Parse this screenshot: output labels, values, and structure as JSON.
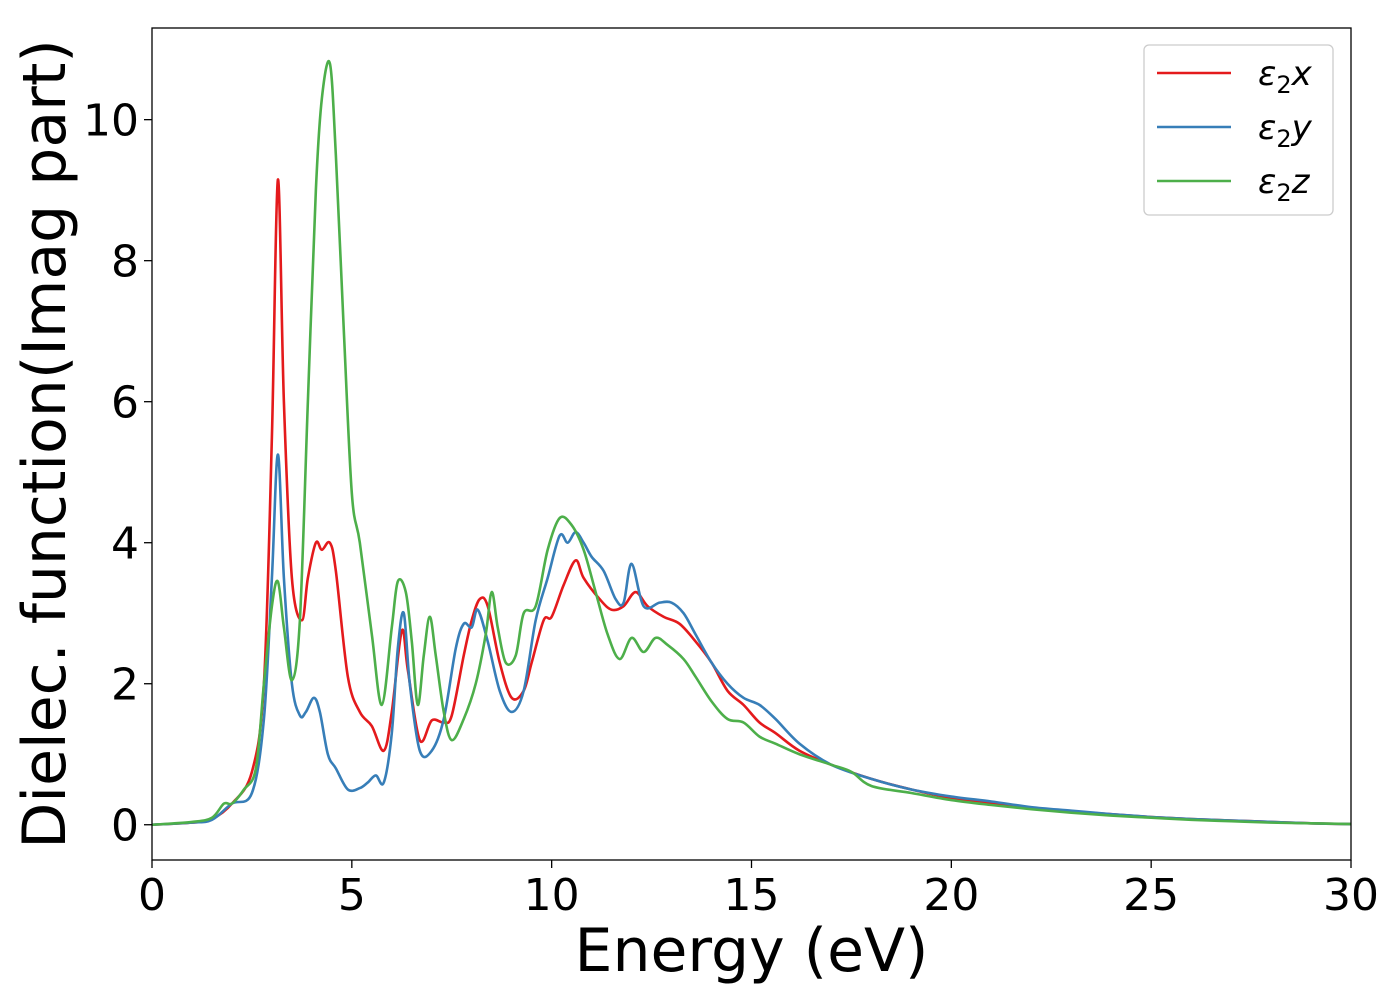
{
  "chart_data": {
    "type": "line",
    "title": "",
    "xlabel": "Energy (eV)",
    "ylabel": "Dielec. function(Imag part)",
    "xlim": [
      0,
      30
    ],
    "ylim": [
      -0.5,
      11.3
    ],
    "xticks": [
      0,
      5,
      10,
      15,
      20,
      25,
      30
    ],
    "yticks": [
      0,
      2,
      4,
      6,
      8,
      10
    ],
    "grid": false,
    "legend_position": "top-right",
    "series": [
      {
        "name": "ε2x",
        "label_base": "ε",
        "label_sub": "2",
        "label_suffix": "x",
        "color": "#e41a1c",
        "points": [
          [
            0,
            0
          ],
          [
            1,
            0.03
          ],
          [
            1.5,
            0.08
          ],
          [
            2,
            0.3
          ],
          [
            2.5,
            0.75
          ],
          [
            2.8,
            2.0
          ],
          [
            3.0,
            5.5
          ],
          [
            3.15,
            9.15
          ],
          [
            3.3,
            6.0
          ],
          [
            3.5,
            3.5
          ],
          [
            3.75,
            2.9
          ],
          [
            3.9,
            3.5
          ],
          [
            4.1,
            4.0
          ],
          [
            4.25,
            3.9
          ],
          [
            4.45,
            4.0
          ],
          [
            4.6,
            3.6
          ],
          [
            4.9,
            2.1
          ],
          [
            5.2,
            1.6
          ],
          [
            5.5,
            1.4
          ],
          [
            5.8,
            1.05
          ],
          [
            6.0,
            1.6
          ],
          [
            6.25,
            2.75
          ],
          [
            6.4,
            2.2
          ],
          [
            6.7,
            1.2
          ],
          [
            7.0,
            1.48
          ],
          [
            7.3,
            1.45
          ],
          [
            7.5,
            1.55
          ],
          [
            7.8,
            2.4
          ],
          [
            8.0,
            2.9
          ],
          [
            8.2,
            3.2
          ],
          [
            8.4,
            3.1
          ],
          [
            8.7,
            2.3
          ],
          [
            9.0,
            1.8
          ],
          [
            9.3,
            1.9
          ],
          [
            9.5,
            2.3
          ],
          [
            9.8,
            2.9
          ],
          [
            10.0,
            2.95
          ],
          [
            10.3,
            3.4
          ],
          [
            10.6,
            3.75
          ],
          [
            10.8,
            3.5
          ],
          [
            11.2,
            3.2
          ],
          [
            11.5,
            3.05
          ],
          [
            11.8,
            3.1
          ],
          [
            12.1,
            3.3
          ],
          [
            12.4,
            3.1
          ],
          [
            12.8,
            2.95
          ],
          [
            13.2,
            2.85
          ],
          [
            13.6,
            2.6
          ],
          [
            14.0,
            2.3
          ],
          [
            14.4,
            1.9
          ],
          [
            14.8,
            1.7
          ],
          [
            15.2,
            1.45
          ],
          [
            15.6,
            1.3
          ],
          [
            16.2,
            1.05
          ],
          [
            17.0,
            0.85
          ],
          [
            18.0,
            0.65
          ],
          [
            19.0,
            0.5
          ],
          [
            20.0,
            0.38
          ],
          [
            21.0,
            0.3
          ],
          [
            22.0,
            0.24
          ],
          [
            23.0,
            0.19
          ],
          [
            24.0,
            0.15
          ],
          [
            25.0,
            0.11
          ],
          [
            26.0,
            0.08
          ],
          [
            27.0,
            0.06
          ],
          [
            28.0,
            0.04
          ],
          [
            29.0,
            0.02
          ],
          [
            30.0,
            0.01
          ]
        ]
      },
      {
        "name": "ε2y",
        "label_base": "ε",
        "label_sub": "2",
        "label_suffix": "y",
        "color": "#377eb8",
        "points": [
          [
            0,
            0
          ],
          [
            1,
            0.03
          ],
          [
            1.5,
            0.07
          ],
          [
            2,
            0.3
          ],
          [
            2.5,
            0.45
          ],
          [
            2.8,
            1.5
          ],
          [
            3.0,
            3.5
          ],
          [
            3.15,
            5.25
          ],
          [
            3.3,
            3.5
          ],
          [
            3.5,
            2.0
          ],
          [
            3.7,
            1.55
          ],
          [
            3.85,
            1.6
          ],
          [
            4.05,
            1.8
          ],
          [
            4.2,
            1.6
          ],
          [
            4.4,
            1.0
          ],
          [
            4.6,
            0.8
          ],
          [
            4.9,
            0.5
          ],
          [
            5.2,
            0.52
          ],
          [
            5.4,
            0.6
          ],
          [
            5.6,
            0.7
          ],
          [
            5.8,
            0.6
          ],
          [
            6.0,
            1.3
          ],
          [
            6.15,
            2.5
          ],
          [
            6.3,
            3.0
          ],
          [
            6.45,
            2.0
          ],
          [
            6.7,
            1.05
          ],
          [
            7.0,
            1.05
          ],
          [
            7.3,
            1.5
          ],
          [
            7.6,
            2.5
          ],
          [
            7.8,
            2.85
          ],
          [
            8.0,
            2.8
          ],
          [
            8.15,
            3.05
          ],
          [
            8.4,
            2.6
          ],
          [
            8.7,
            1.9
          ],
          [
            9.0,
            1.6
          ],
          [
            9.3,
            1.9
          ],
          [
            9.6,
            2.9
          ],
          [
            9.9,
            3.5
          ],
          [
            10.2,
            4.1
          ],
          [
            10.4,
            4.0
          ],
          [
            10.6,
            4.15
          ],
          [
            10.8,
            4.0
          ],
          [
            11.0,
            3.8
          ],
          [
            11.3,
            3.6
          ],
          [
            11.6,
            3.2
          ],
          [
            11.8,
            3.15
          ],
          [
            12.0,
            3.7
          ],
          [
            12.3,
            3.1
          ],
          [
            12.7,
            3.15
          ],
          [
            13.0,
            3.15
          ],
          [
            13.3,
            3.0
          ],
          [
            13.6,
            2.7
          ],
          [
            14.0,
            2.3
          ],
          [
            14.4,
            2.0
          ],
          [
            14.8,
            1.8
          ],
          [
            15.2,
            1.7
          ],
          [
            15.6,
            1.5
          ],
          [
            16.2,
            1.15
          ],
          [
            17.0,
            0.85
          ],
          [
            18.0,
            0.65
          ],
          [
            19.0,
            0.5
          ],
          [
            20.0,
            0.4
          ],
          [
            21.0,
            0.33
          ],
          [
            22.0,
            0.25
          ],
          [
            23.0,
            0.2
          ],
          [
            24.0,
            0.15
          ],
          [
            25.0,
            0.11
          ],
          [
            26.0,
            0.08
          ],
          [
            27.0,
            0.06
          ],
          [
            28.0,
            0.04
          ],
          [
            29.0,
            0.02
          ],
          [
            30.0,
            0.01
          ]
        ]
      },
      {
        "name": "ε2z",
        "label_base": "ε",
        "label_sub": "2",
        "label_suffix": "z",
        "color": "#4daf4a",
        "points": [
          [
            0,
            0
          ],
          [
            1,
            0.04
          ],
          [
            1.5,
            0.1
          ],
          [
            1.8,
            0.3
          ],
          [
            2.0,
            0.3
          ],
          [
            2.3,
            0.5
          ],
          [
            2.6,
            0.8
          ],
          [
            2.8,
            2.0
          ],
          [
            3.0,
            3.1
          ],
          [
            3.15,
            3.45
          ],
          [
            3.3,
            2.8
          ],
          [
            3.5,
            2.05
          ],
          [
            3.7,
            2.9
          ],
          [
            3.9,
            6.0
          ],
          [
            4.1,
            9.0
          ],
          [
            4.25,
            10.3
          ],
          [
            4.45,
            10.8
          ],
          [
            4.6,
            9.5
          ],
          [
            4.8,
            7.0
          ],
          [
            5.0,
            4.7
          ],
          [
            5.2,
            4.0
          ],
          [
            5.5,
            2.7
          ],
          [
            5.75,
            1.7
          ],
          [
            6.0,
            2.8
          ],
          [
            6.15,
            3.45
          ],
          [
            6.35,
            3.3
          ],
          [
            6.5,
            2.6
          ],
          [
            6.65,
            1.7
          ],
          [
            6.8,
            2.4
          ],
          [
            6.95,
            2.95
          ],
          [
            7.1,
            2.4
          ],
          [
            7.3,
            1.6
          ],
          [
            7.5,
            1.2
          ],
          [
            7.8,
            1.5
          ],
          [
            8.1,
            2.0
          ],
          [
            8.35,
            2.7
          ],
          [
            8.5,
            3.3
          ],
          [
            8.65,
            2.8
          ],
          [
            8.85,
            2.3
          ],
          [
            9.1,
            2.4
          ],
          [
            9.3,
            3.0
          ],
          [
            9.6,
            3.1
          ],
          [
            9.9,
            3.9
          ],
          [
            10.2,
            4.35
          ],
          [
            10.5,
            4.25
          ],
          [
            10.8,
            3.9
          ],
          [
            11.1,
            3.3
          ],
          [
            11.4,
            2.7
          ],
          [
            11.7,
            2.35
          ],
          [
            12.0,
            2.65
          ],
          [
            12.3,
            2.45
          ],
          [
            12.6,
            2.65
          ],
          [
            12.9,
            2.55
          ],
          [
            13.3,
            2.35
          ],
          [
            13.6,
            2.1
          ],
          [
            14.0,
            1.75
          ],
          [
            14.4,
            1.5
          ],
          [
            14.8,
            1.45
          ],
          [
            15.2,
            1.25
          ],
          [
            15.6,
            1.15
          ],
          [
            16.2,
            1.0
          ],
          [
            17.0,
            0.85
          ],
          [
            17.5,
            0.75
          ],
          [
            18.0,
            0.55
          ],
          [
            19.0,
            0.45
          ],
          [
            20.0,
            0.35
          ],
          [
            21.0,
            0.28
          ],
          [
            22.0,
            0.22
          ],
          [
            23.0,
            0.17
          ],
          [
            24.0,
            0.13
          ],
          [
            25.0,
            0.1
          ],
          [
            26.0,
            0.07
          ],
          [
            27.0,
            0.05
          ],
          [
            28.0,
            0.03
          ],
          [
            29.0,
            0.02
          ],
          [
            30.0,
            0.01
          ]
        ]
      }
    ]
  }
}
